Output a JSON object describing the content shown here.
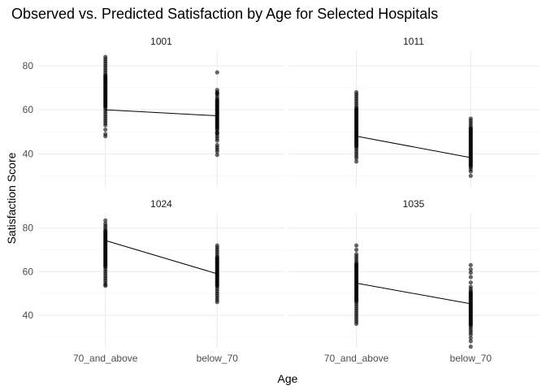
{
  "chart_data": {
    "type": "scatter",
    "title": "Observed vs. Predicted Satisfaction by Age for Selected Hospitals",
    "xlabel": "Age",
    "ylabel": "Satisfaction Score",
    "categories": [
      "70_and_above",
      "below_70"
    ],
    "ylim": [
      25,
      87
    ],
    "yticks": [
      40,
      60,
      80
    ],
    "grid": true,
    "legend": "none",
    "colors": {
      "points": "#000000",
      "line": "#000000",
      "grid": "#ebebeb"
    },
    "panels": [
      {
        "label": "1001",
        "predicted": [
          60.0,
          57.3
        ],
        "observed": [
          [
            84,
            83,
            82,
            81,
            80,
            79,
            78,
            77,
            76,
            75.5,
            75,
            74.5,
            74,
            73.5,
            73,
            72.5,
            72,
            71.5,
            71,
            70.5,
            70,
            69.5,
            69,
            68.5,
            68,
            67.5,
            67,
            66.5,
            66,
            65.5,
            65,
            64.5,
            64,
            63.5,
            63,
            62.5,
            62,
            61.5,
            61,
            60,
            59,
            58,
            57,
            56,
            55,
            54,
            53,
            51,
            49,
            48
          ],
          [
            77,
            69,
            68,
            67.5,
            67,
            66,
            65,
            64.5,
            64,
            63.5,
            63,
            62.5,
            62,
            61.5,
            61,
            60.5,
            60,
            59.5,
            59,
            58.5,
            58,
            57.5,
            57,
            56.5,
            56,
            55.5,
            55,
            54.5,
            54,
            53.5,
            53,
            52.5,
            52,
            51.5,
            51,
            50,
            49.5,
            49,
            48,
            47,
            46,
            44,
            43,
            42,
            41,
            39.5
          ]
        ]
      },
      {
        "label": "1011",
        "predicted": [
          48.0,
          38.3
        ],
        "observed": [
          [
            68,
            67,
            66,
            65,
            64,
            63,
            62,
            61,
            60.5,
            60,
            59.5,
            59,
            58.5,
            58,
            57.5,
            57,
            56.5,
            56,
            55.5,
            55,
            54.5,
            54,
            53.5,
            53,
            52.5,
            52,
            51.5,
            51,
            50.5,
            50,
            49.5,
            49,
            48.5,
            48,
            47.5,
            47,
            46.5,
            46,
            45.5,
            45,
            44.5,
            44,
            43.5,
            43,
            42,
            41,
            40,
            39,
            38,
            36.5
          ],
          [
            56,
            55,
            54,
            53,
            52,
            51.5,
            51,
            50.5,
            50,
            49.5,
            49,
            48.5,
            48,
            47.5,
            47,
            46.5,
            46,
            45.5,
            45,
            44.5,
            44,
            43.5,
            43,
            42.5,
            42,
            41.5,
            41,
            40.5,
            40,
            39.5,
            39,
            38.5,
            38,
            37.5,
            37,
            36.5,
            36,
            35.5,
            35,
            34.5,
            34,
            33,
            32,
            30
          ]
        ]
      },
      {
        "label": "1024",
        "predicted": [
          74.3,
          59.0
        ],
        "observed": [
          [
            83.5,
            82,
            81,
            80,
            79,
            78.5,
            78,
            77.5,
            77,
            76.5,
            76,
            75.5,
            75,
            74.5,
            74,
            73.5,
            73,
            72.5,
            72,
            71.5,
            71,
            70.5,
            70,
            69.5,
            69,
            68.5,
            68,
            67.5,
            67,
            66.5,
            66,
            65.5,
            65,
            64.5,
            64,
            63.5,
            63,
            62.5,
            62,
            61,
            60,
            59,
            58,
            57,
            56,
            55,
            54,
            53.5
          ],
          [
            72,
            71,
            70,
            69,
            68,
            67,
            66.5,
            66,
            65.5,
            65,
            64.5,
            64,
            63.5,
            63,
            62.5,
            62,
            61.5,
            61,
            60.5,
            60,
            59.5,
            59,
            58.5,
            58,
            57.5,
            57,
            56.5,
            56,
            55.5,
            55,
            54.5,
            54,
            53.5,
            53,
            52,
            51,
            50,
            49,
            48,
            47,
            46
          ]
        ]
      },
      {
        "label": "1035",
        "predicted": [
          54.7,
          45.2
        ],
        "observed": [
          [
            72,
            70,
            68,
            67,
            66,
            65,
            64,
            63.5,
            63,
            62.5,
            62,
            61.5,
            61,
            60.5,
            60,
            59.5,
            59,
            58.5,
            58,
            57.5,
            57,
            56.5,
            56,
            55.5,
            55,
            54.5,
            54,
            53.5,
            53,
            52.5,
            52,
            51.5,
            51,
            50.5,
            50,
            49.5,
            49,
            48.5,
            48,
            47.5,
            47,
            46.5,
            46,
            45,
            44,
            43,
            42,
            41,
            40,
            39,
            38,
            37,
            36
          ],
          [
            63,
            61,
            59.5,
            57.5,
            55,
            53,
            52,
            51,
            50.5,
            50,
            49.5,
            49,
            48.5,
            48,
            47.5,
            47,
            46.5,
            46,
            45.5,
            45,
            44.5,
            44,
            43.5,
            43,
            42.5,
            42,
            41.5,
            41,
            40.5,
            40,
            39.5,
            39,
            38.5,
            38,
            37.5,
            37,
            36.5,
            36,
            35.5,
            35,
            34,
            33,
            32,
            31,
            29.5,
            28,
            25.5
          ]
        ]
      }
    ]
  }
}
